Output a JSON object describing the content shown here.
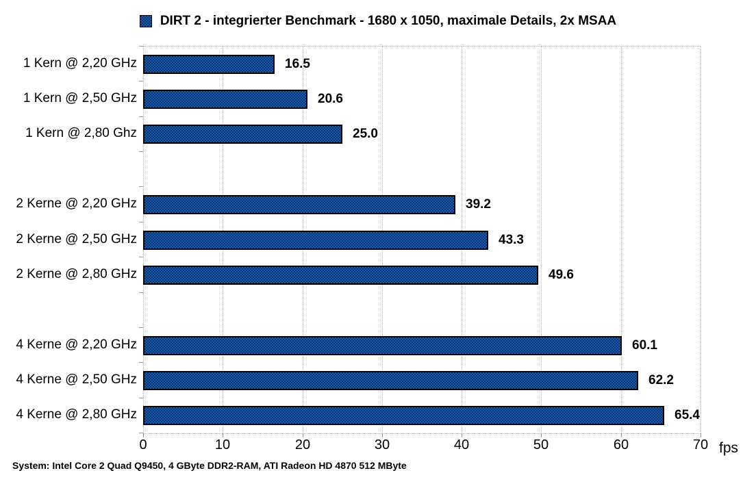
{
  "title": {
    "text": "DIRT 2 - integrierter Benchmark - 1680 x 1050, maximale Details, 2x MSAA"
  },
  "footer": "System: Intel Core 2 Quad Q9450, 4 GByte DDR2-RAM, ATI Radeon HD 4870 512 MByte",
  "colors": {
    "bar_fill_light": "#1a5cae",
    "bar_fill_dark": "#0c3270",
    "bar_border": "#000000",
    "grid": "#b0b0b0",
    "text": "#000000",
    "background": "#ffffff"
  },
  "chart_data": {
    "type": "bar",
    "orientation": "horizontal",
    "title": "DIRT 2 - integrierter Benchmark - 1680 x 1050, maximale Details, 2x MSAA",
    "categories": [
      "1 Kern @ 2,20 GHz",
      "1 Kern @ 2,50 GHz",
      "1 Kern @ 2,80 Ghz",
      "",
      "2 Kerne @ 2,20 GHz",
      "2 Kerne @ 2,50 GHz",
      "2 Kerne @ 2,80 GHz",
      "",
      "4 Kerne @ 2,20 GHz",
      "4 Kerne @ 2,50 GHz",
      "4 Kerne @ 2,80 GHz"
    ],
    "values": [
      16.5,
      20.6,
      25.0,
      null,
      39.2,
      43.3,
      49.6,
      null,
      60.1,
      62.2,
      65.4
    ],
    "value_labels": [
      "16.5",
      "20.6",
      "25.0",
      null,
      "39.2",
      "43.3",
      "49.6",
      null,
      "60.1",
      "62.2",
      "65.4"
    ],
    "xlabel": "fps",
    "xlim": [
      0,
      70
    ],
    "xticks": [
      0,
      10,
      20,
      30,
      40,
      50,
      60,
      70
    ],
    "grid": true,
    "legend_position": "top"
  }
}
